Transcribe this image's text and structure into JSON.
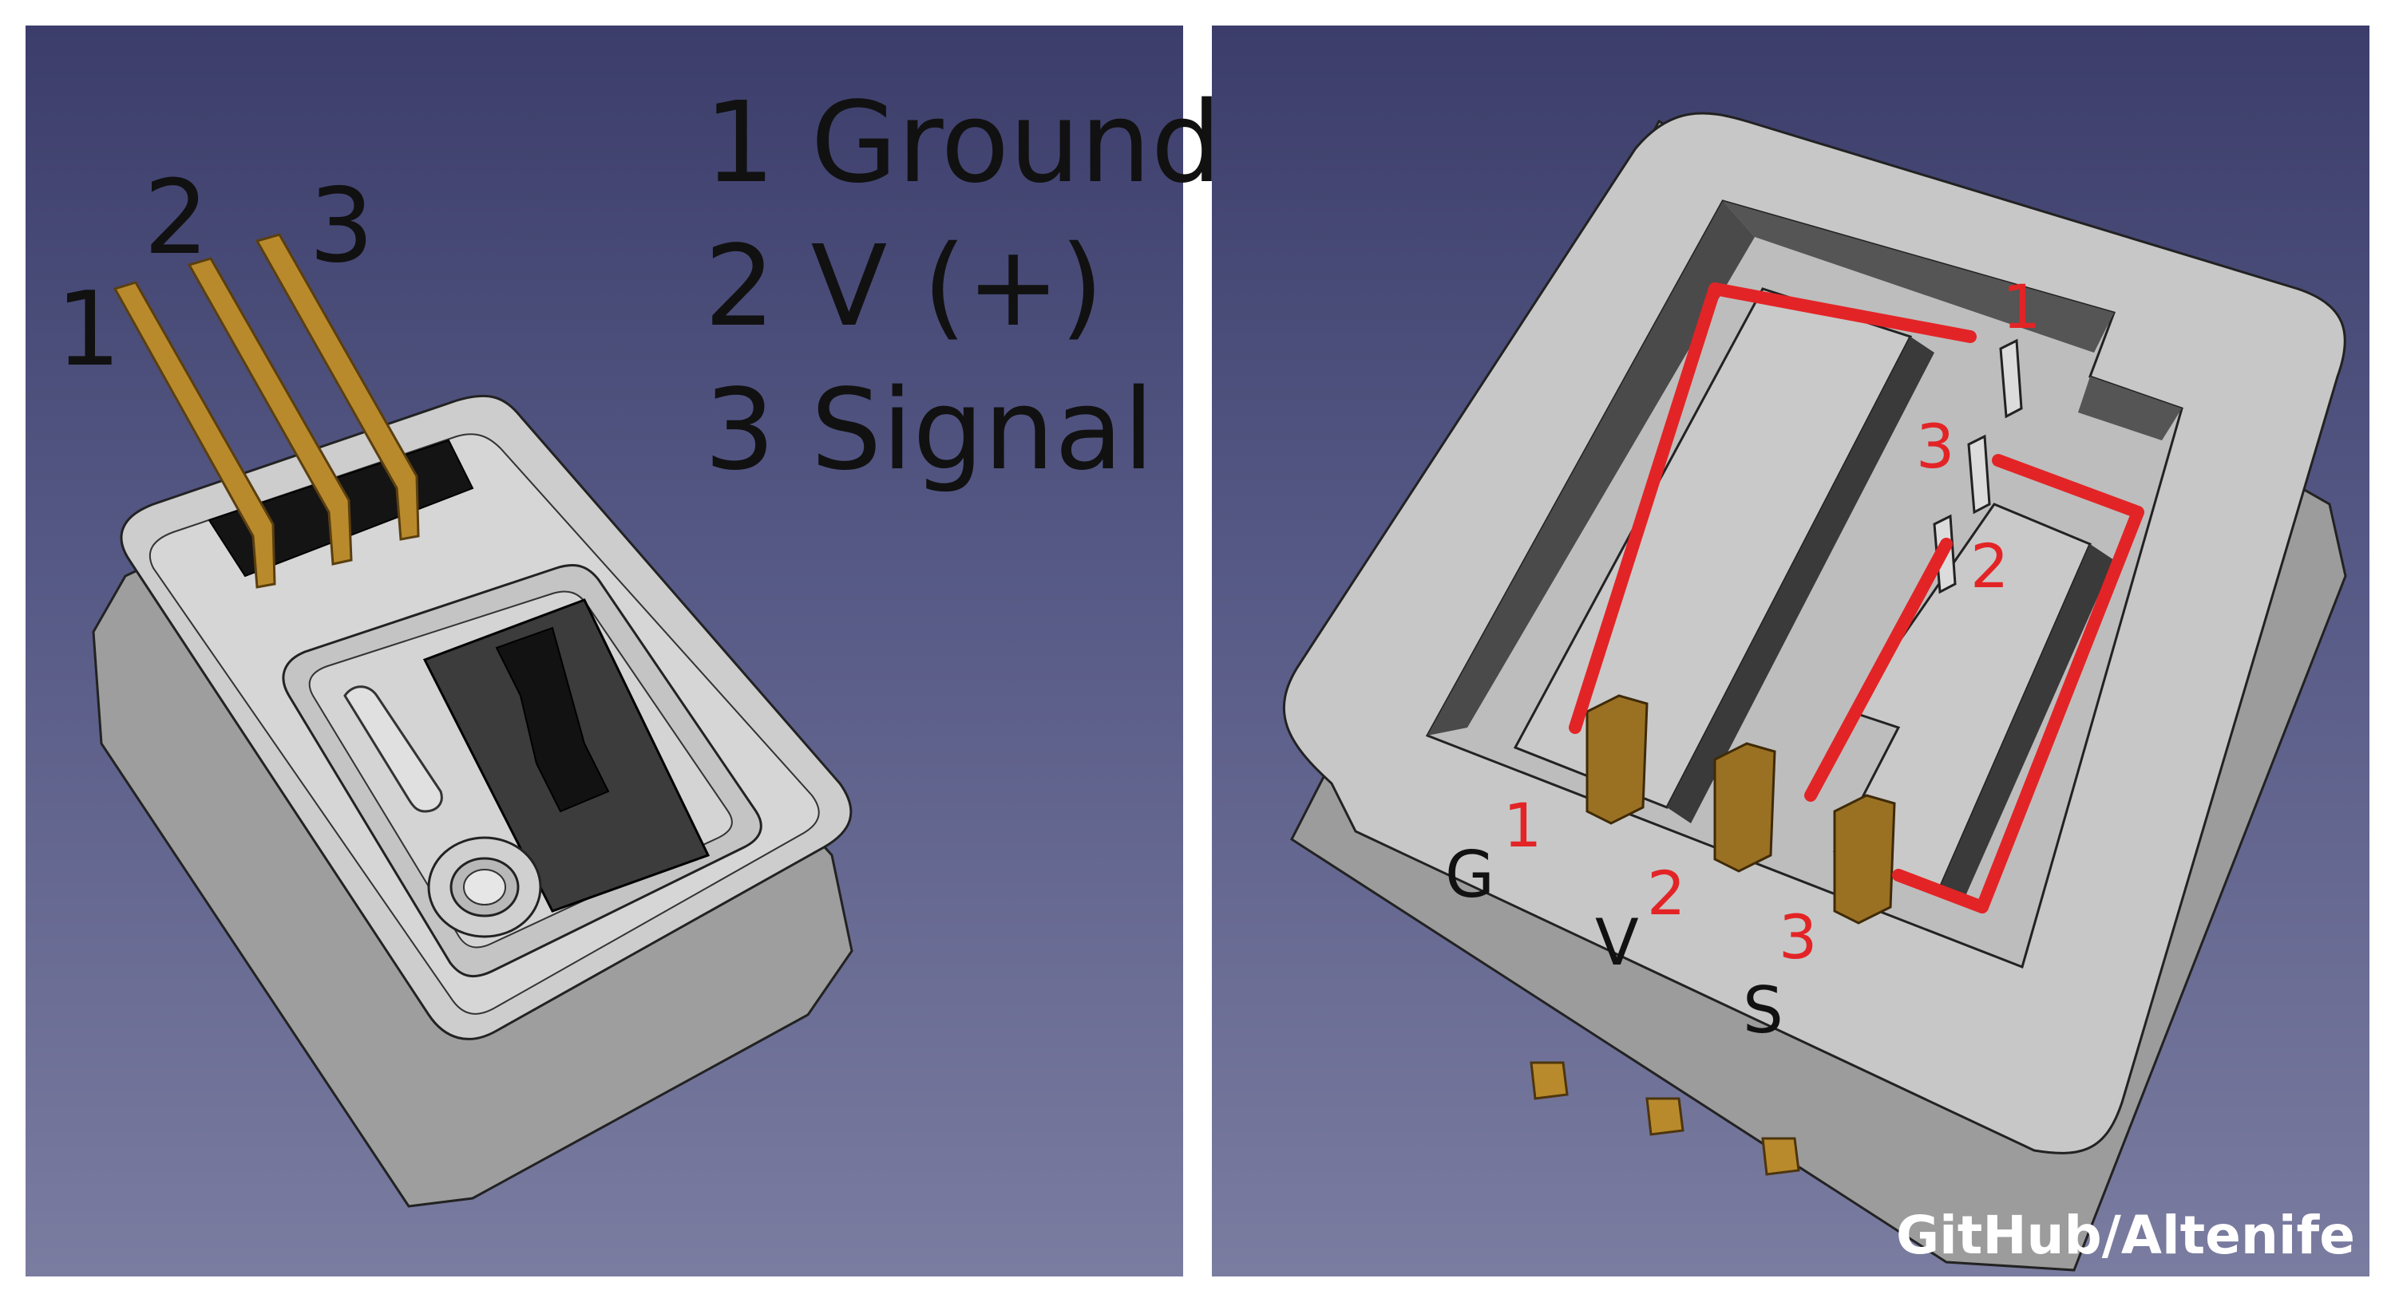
{
  "left": {
    "pin_numbers": [
      "1",
      "2",
      "3"
    ],
    "legend": [
      "1 Ground",
      "2 V (+)",
      "3 Signal"
    ]
  },
  "right": {
    "red_numbers": [
      "1",
      "3",
      "2",
      "1",
      "2",
      "3"
    ],
    "labels": [
      "G",
      "V",
      "S"
    ]
  },
  "credit": "GitHub/Altenife",
  "colors": {
    "background_top": "#3c3d6a",
    "background_bottom": "#7a7ca0",
    "body": "#c8c8c8",
    "pin_gold": "#b98a2c",
    "trace_red": "#e32426"
  }
}
